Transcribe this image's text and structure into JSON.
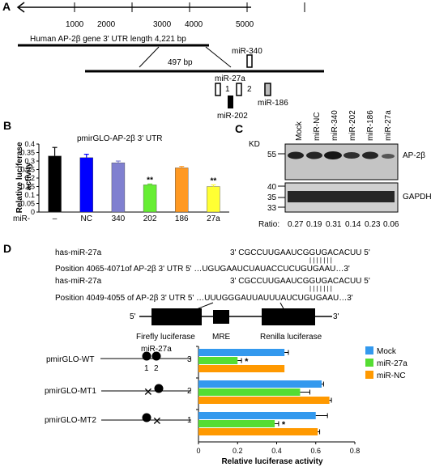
{
  "panel_a": {
    "label": "A",
    "ticks": [
      "1000",
      "2000",
      "3000",
      "4000",
      "5000"
    ],
    "gene_label": "Human AP-2β gene 3' UTR length 4,221 bp",
    "zoom_label": "497 bp",
    "mir340": "miR-340",
    "mir27a": "miR-27a",
    "site1": "1",
    "site2": "2",
    "mir202": "miR-202",
    "mir186": "miR-186"
  },
  "panel_b": {
    "label": "B",
    "construct": "pmirGLO-AP-2β 3' UTR",
    "ylabel": "Relative luciferase activity",
    "row_label": "miR-",
    "sig": "**"
  },
  "panel_c": {
    "label": "C",
    "kd": "KD",
    "lanes": [
      "Mock",
      "miR-NC",
      "miR-340",
      "miR-202",
      "miR-186",
      "miR-27a"
    ],
    "mw_top": "55",
    "mw_mid1": "40",
    "mw_mid2": "35",
    "mw_bot": "33",
    "protein1": "AP-2β",
    "protein2": "GAPDH",
    "ratio_label": "Ratio:",
    "ratios": [
      "0.27",
      "0.19",
      "0.31",
      "0.14",
      "0.23",
      "0.06"
    ]
  },
  "panel_d": {
    "label": "D",
    "seq1_name": "has-miR-27a",
    "seq1_mir": "3'    CGCCUUGAAUCGGUGACACUU     5'",
    "seq1_bars": "| | | | | | |",
    "seq1_pos": "Position 4065-4071of AP-2β 3' UTR 5' …UGUGAAUCUAUACCUCUGUGAAU…3'",
    "seq2_name": "has-miR-27a",
    "seq2_mir": "3'    CGCCUUGAAUCGGUGACACUU     5'",
    "seq2_bars": "| | | | | | |",
    "seq2_pos": "Position 4049-4055 of AP-2β 3' UTR 5' …UUUGGGAUUAUUUAUCUGUGAAU…3'",
    "five": "5'",
    "three": "3'",
    "firefly": "Firefly luciferase",
    "mre": "MRE",
    "renilla": "Renilla luciferase",
    "mir_label": "miR-27a",
    "site_nums": [
      "1",
      "2"
    ],
    "constructs": [
      "pmirGLO-WT",
      "pmirGLO-MT1",
      "pmirGLO-MT2"
    ],
    "group_nums": [
      "3",
      "2",
      "1"
    ],
    "legend": [
      "Mock",
      "miR-27a",
      "miR-NC"
    ],
    "sig": "*"
  },
  "chart_data": [
    {
      "type": "bar",
      "title": "pmirGLO-AP-2β 3' UTR",
      "ylabel": "Relative luciferase activity",
      "categories": [
        "–",
        "NC",
        "340",
        "202",
        "186",
        "27a"
      ],
      "values": [
        0.33,
        0.32,
        0.29,
        0.16,
        0.26,
        0.15
      ],
      "errors": [
        0.05,
        0.02,
        0.01,
        0.005,
        0.008,
        0.01
      ],
      "colors": [
        "#000000",
        "#0000ff",
        "#8080d0",
        "#66ee33",
        "#ff9922",
        "#ffff33"
      ],
      "significant": [
        false,
        false,
        false,
        true,
        false,
        true
      ],
      "ylim": [
        0,
        0.4
      ],
      "yticks": [
        "0",
        "0.05",
        "0.1",
        "0.15",
        "0.2",
        "0.25",
        "0.3",
        "0.35",
        "0.4"
      ]
    },
    {
      "type": "bar",
      "orientation": "horizontal",
      "xlabel": "Relative luciferase activity",
      "categories": [
        "3",
        "2",
        "1"
      ],
      "series": [
        {
          "name": "Mock",
          "color": "#3399ee",
          "values": [
            0.44,
            0.63,
            0.6
          ],
          "errors": [
            0.02,
            0.01,
            0.06
          ]
        },
        {
          "name": "miR-27a",
          "color": "#55dd33",
          "values": [
            0.2,
            0.52,
            0.39
          ],
          "errors": [
            0.02,
            0.05,
            0.02
          ]
        },
        {
          "name": "miR-NC",
          "color": "#ff9900",
          "values": [
            0.44,
            0.67,
            0.61
          ],
          "errors": [
            0.0,
            0.01,
            0.01
          ]
        }
      ],
      "significant": [
        true,
        false,
        true
      ],
      "xlim": [
        0,
        0.8
      ],
      "xticks": [
        "0",
        "0.2",
        "0.4",
        "0.6",
        "0.8"
      ]
    }
  ]
}
